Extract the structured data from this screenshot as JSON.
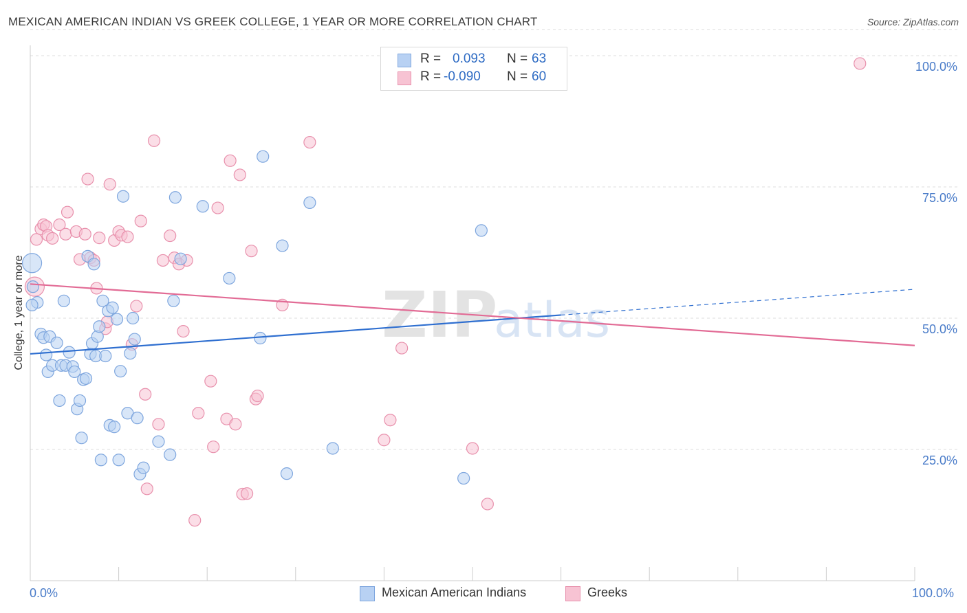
{
  "header": {
    "title": "MEXICAN AMERICAN INDIAN VS GREEK COLLEGE, 1 YEAR OR MORE CORRELATION CHART",
    "source": "Source: ZipAtlas.com"
  },
  "stats": {
    "rows": [
      {
        "r_label": "R =",
        "r_value": "0.093",
        "n_label": "N =",
        "n_value": "63"
      },
      {
        "r_label": "R =",
        "r_value": "-0.090",
        "n_label": "N =",
        "n_value": "60"
      }
    ]
  },
  "legend": {
    "items": [
      {
        "label": "Mexican American Indians"
      },
      {
        "label": "Greeks"
      }
    ]
  },
  "watermark": {
    "zip": "ZIP",
    "atlas": "atlas"
  },
  "chart_data": {
    "type": "scatter",
    "title": "MEXICAN AMERICAN INDIAN VS GREEK COLLEGE, 1 YEAR OR MORE CORRELATION CHART",
    "ylabel": "College, 1 year or more",
    "xlabel": "",
    "xlim": [
      0,
      100
    ],
    "ylim": [
      0,
      105
    ],
    "x_tick_labels": [
      "0.0%",
      "100.0%"
    ],
    "y_ticks": [
      25,
      50,
      75,
      100
    ],
    "y_tick_labels": [
      "25.0%",
      "50.0%",
      "75.0%",
      "100.0%"
    ],
    "grid": "horizontal dashed",
    "legend_position": "bottom-center",
    "colors": {
      "blue_fill": "#b8d1f3",
      "blue_stroke": "#7ea6de",
      "blue_line": "#2f6fd0",
      "pink_fill": "#f7c3d3",
      "pink_stroke": "#e890ac",
      "pink_line": "#e26b95",
      "tick_text": "#4a7cc9",
      "grid": "#dddddd"
    },
    "series": [
      {
        "name": "Mexican American Indians",
        "r": 0.093,
        "n": 63,
        "trend": {
          "x0": 0,
          "y0": 43.2,
          "x1": 60,
          "y1": 50.6,
          "dashed_to_x": 100,
          "dashed_to_y": 55.5
        },
        "points": [
          [
            0.2,
            60.5
          ],
          [
            0.3,
            56
          ],
          [
            0.8,
            53
          ],
          [
            1.2,
            47
          ],
          [
            1.5,
            46.3
          ],
          [
            1.8,
            43
          ],
          [
            2.0,
            39.8
          ],
          [
            2.2,
            46.5
          ],
          [
            2.5,
            41
          ],
          [
            3.0,
            45.3
          ],
          [
            3.3,
            34.3
          ],
          [
            3.5,
            41
          ],
          [
            3.8,
            53.3
          ],
          [
            4.0,
            41
          ],
          [
            4.4,
            43.5
          ],
          [
            4.8,
            40.8
          ],
          [
            5.0,
            39.8
          ],
          [
            5.3,
            32.7
          ],
          [
            5.6,
            34.3
          ],
          [
            5.8,
            27.2
          ],
          [
            6.0,
            38.3
          ],
          [
            6.3,
            38.5
          ],
          [
            6.5,
            61.8
          ],
          [
            6.8,
            43.2
          ],
          [
            7.0,
            45.2
          ],
          [
            7.2,
            60.3
          ],
          [
            7.4,
            42.8
          ],
          [
            7.6,
            46.5
          ],
          [
            7.8,
            48.4
          ],
          [
            8.0,
            23
          ],
          [
            8.2,
            53.3
          ],
          [
            8.5,
            42.8
          ],
          [
            8.8,
            51.4
          ],
          [
            9.0,
            29.6
          ],
          [
            9.3,
            52
          ],
          [
            9.5,
            29.3
          ],
          [
            9.8,
            49.8
          ],
          [
            10.0,
            23
          ],
          [
            10.2,
            39.9
          ],
          [
            10.5,
            73.2
          ],
          [
            11.0,
            31.9
          ],
          [
            11.3,
            43.3
          ],
          [
            11.6,
            50
          ],
          [
            11.8,
            46
          ],
          [
            12.1,
            31
          ],
          [
            12.4,
            20.3
          ],
          [
            12.8,
            21.5
          ],
          [
            14.5,
            26.5
          ],
          [
            15.8,
            24
          ],
          [
            16.2,
            53.3
          ],
          [
            16.4,
            73
          ],
          [
            17.0,
            61.3
          ],
          [
            19.5,
            71.3
          ],
          [
            22.5,
            57.6
          ],
          [
            26.0,
            46.2
          ],
          [
            26.3,
            80.8
          ],
          [
            28.5,
            63.8
          ],
          [
            29.0,
            20.4
          ],
          [
            31.6,
            72
          ],
          [
            34.2,
            25.2
          ],
          [
            49.0,
            19.5
          ],
          [
            51.0,
            66.7
          ],
          [
            0.2,
            52.5
          ]
        ]
      },
      {
        "name": "Greeks",
        "r": -0.09,
        "n": 60,
        "trend": {
          "x0": 0,
          "y0": 56.5,
          "x1": 100,
          "y1": 44.8
        },
        "points": [
          [
            0.5,
            56
          ],
          [
            0.7,
            65
          ],
          [
            1.2,
            67
          ],
          [
            1.5,
            67.8
          ],
          [
            1.8,
            67.5
          ],
          [
            2.0,
            65.8
          ],
          [
            2.5,
            65.2
          ],
          [
            3.3,
            67.8
          ],
          [
            4.0,
            66
          ],
          [
            4.2,
            70.2
          ],
          [
            5.2,
            66.5
          ],
          [
            5.6,
            61.2
          ],
          [
            6.2,
            66
          ],
          [
            6.5,
            76.5
          ],
          [
            6.8,
            61.5
          ],
          [
            7.2,
            61
          ],
          [
            7.5,
            55.7
          ],
          [
            7.8,
            65.3
          ],
          [
            8.5,
            48
          ],
          [
            8.7,
            49.3
          ],
          [
            9.0,
            75.5
          ],
          [
            9.5,
            64.8
          ],
          [
            10.0,
            66.5
          ],
          [
            10.3,
            65.8
          ],
          [
            11.0,
            65.5
          ],
          [
            11.5,
            45
          ],
          [
            12.0,
            52.3
          ],
          [
            12.5,
            68.5
          ],
          [
            13.0,
            35.5
          ],
          [
            13.2,
            17.5
          ],
          [
            14.0,
            83.8
          ],
          [
            14.5,
            29.8
          ],
          [
            15.0,
            61
          ],
          [
            15.8,
            65.7
          ],
          [
            16.3,
            61.5
          ],
          [
            16.8,
            60.3
          ],
          [
            17.3,
            47.5
          ],
          [
            17.7,
            61
          ],
          [
            18.6,
            11.5
          ],
          [
            19.0,
            31.9
          ],
          [
            20.4,
            38
          ],
          [
            20.7,
            25.5
          ],
          [
            21.2,
            71
          ],
          [
            22.2,
            30.8
          ],
          [
            22.6,
            80
          ],
          [
            23.2,
            29.8
          ],
          [
            23.7,
            77.3
          ],
          [
            24.0,
            16.5
          ],
          [
            24.5,
            16.6
          ],
          [
            25.0,
            62.8
          ],
          [
            25.5,
            34.6
          ],
          [
            25.7,
            35.2
          ],
          [
            28.5,
            52.5
          ],
          [
            31.6,
            83.5
          ],
          [
            40.0,
            26.8
          ],
          [
            40.7,
            30.6
          ],
          [
            42.0,
            44.3
          ],
          [
            50.0,
            25.2
          ],
          [
            51.7,
            14.6
          ],
          [
            93.8,
            98.5
          ]
        ]
      }
    ]
  }
}
